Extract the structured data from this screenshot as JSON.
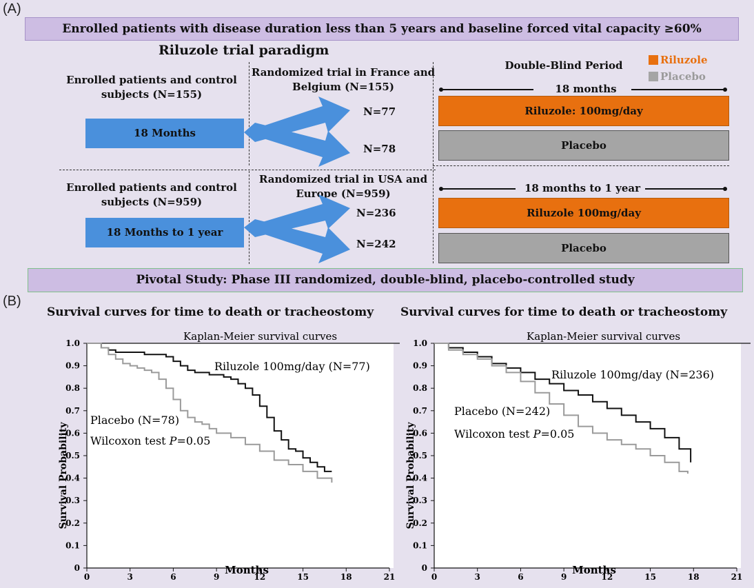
{
  "panel_a": {
    "label": "(A)",
    "top_banner": "Enrolled patients with disease duration less than 5 years and baseline forced vital capacity ≥60%",
    "paradigm_title": "Riluzole trial  paradigm",
    "legend": {
      "riluzole": "Riluzole",
      "placebo": "Placebo",
      "riluzole_color": "#e8700f",
      "placebo_color": "#a5a5a5"
    },
    "double_blind_title": "Double-Blind Period",
    "top": {
      "enrolled": "Enrolled patients and control subjects (N=155)",
      "duration_bar": "18 Months",
      "randomized": "Randomized trial in France and Belgium (N=155)",
      "n_upper": "N=77",
      "n_lower": "N=78",
      "period": "18 months",
      "riluzole_bar": "Riluzole: 100mg/day",
      "placebo_bar": "Placebo"
    },
    "bottom": {
      "enrolled": "Enrolled patients and control subjects (N=959)",
      "duration_bar": "18 Months to 1 year",
      "randomized": "Randomized trial in USA and Europe (N=959)",
      "n_upper": "N=236",
      "n_lower": "N=242",
      "period": "18 months to 1 year",
      "riluzole_bar": "Riluzole 100mg/day",
      "placebo_bar": "Placebo"
    },
    "bottom_banner": "Pivotal Study: Phase III randomized, double-blind, placebo-controlled study",
    "arrow_color": "#4a90dc"
  },
  "panel_b": {
    "label": "(B)",
    "chart_data": [
      {
        "type": "line",
        "title": "Survival curves for time to death or tracheostomy",
        "subtitle": "Kaplan-Meier survival curves",
        "xlabel": "Months",
        "ylabel": "Survival Probability",
        "xlim": [
          0,
          21
        ],
        "ylim": [
          0,
          1.0
        ],
        "xticks": [
          "0",
          "3",
          "6",
          "9",
          "12",
          "15",
          "18",
          "21"
        ],
        "yticks": [
          "0",
          "0.1",
          "0.2",
          "0.3",
          "0.4",
          "0.5",
          "0.6",
          "0.7",
          "0.8",
          "0.9",
          "1.0"
        ],
        "annotation": "Wilcoxon test ",
        "annotation_p": "P",
        "annotation_val": "=0.05",
        "series": [
          {
            "name": "Riluzole 100mg/day (N=77)",
            "color": "#111111",
            "x": [
              0,
              1,
              1.5,
              2,
              3,
              4,
              5,
              5.5,
              6,
              6.5,
              7,
              7.5,
              8,
              8.5,
              9,
              9.5,
              10,
              10.5,
              11,
              11.5,
              12,
              12.5,
              13,
              13.5,
              14,
              14.5,
              15,
              15.5,
              16,
              16.5,
              17
            ],
            "y": [
              1.0,
              0.98,
              0.97,
              0.96,
              0.96,
              0.95,
              0.95,
              0.94,
              0.92,
              0.9,
              0.88,
              0.87,
              0.87,
              0.86,
              0.86,
              0.85,
              0.84,
              0.82,
              0.8,
              0.77,
              0.72,
              0.67,
              0.61,
              0.57,
              0.53,
              0.52,
              0.49,
              0.47,
              0.45,
              0.43,
              0.43
            ]
          },
          {
            "name": "Placebo (N=78)",
            "color": "#9a9a9a",
            "x": [
              0,
              1,
              1.5,
              2,
              2.5,
              3,
              3.5,
              4,
              4.5,
              5,
              5.5,
              6,
              6.5,
              7,
              7.5,
              8,
              8.5,
              9,
              10,
              11,
              12,
              13,
              14,
              15,
              16,
              17
            ],
            "y": [
              1.0,
              0.98,
              0.95,
              0.93,
              0.91,
              0.9,
              0.89,
              0.88,
              0.87,
              0.84,
              0.8,
              0.75,
              0.7,
              0.67,
              0.65,
              0.64,
              0.62,
              0.6,
              0.58,
              0.55,
              0.52,
              0.48,
              0.46,
              0.43,
              0.4,
              0.38
            ]
          }
        ]
      },
      {
        "type": "line",
        "title": "Survival curves for time to death or tracheostomy",
        "subtitle": "Kaplan-Meier survival curves",
        "xlabel": "Months",
        "ylabel": "Survival Probability",
        "xlim": [
          0,
          21
        ],
        "ylim": [
          0,
          1.0
        ],
        "xticks": [
          "0",
          "3",
          "6",
          "9",
          "12",
          "15",
          "18",
          "21"
        ],
        "yticks": [
          "0",
          "0.1",
          "0.2",
          "0.3",
          "0.4",
          "0.5",
          "0.6",
          "0.7",
          "0.8",
          "0.9",
          "1.0"
        ],
        "annotation": "Wilcoxon test ",
        "annotation_p": "P",
        "annotation_val": "=0.05",
        "series": [
          {
            "name": "Riluzole 100mg/day (N=236)",
            "color": "#111111",
            "x": [
              0,
              1,
              2,
              3,
              4,
              5,
              6,
              7,
              8,
              9,
              10,
              11,
              12,
              13,
              14,
              15,
              16,
              17,
              17.8
            ],
            "y": [
              1.0,
              0.98,
              0.96,
              0.94,
              0.91,
              0.89,
              0.87,
              0.84,
              0.82,
              0.79,
              0.77,
              0.74,
              0.71,
              0.68,
              0.65,
              0.62,
              0.58,
              0.53,
              0.47
            ]
          },
          {
            "name": "Placebo (N=242)",
            "color": "#9a9a9a",
            "x": [
              0,
              1,
              2,
              3,
              4,
              5,
              6,
              7,
              8,
              9,
              10,
              11,
              12,
              13,
              14,
              15,
              16,
              17,
              17.6
            ],
            "y": [
              1.0,
              0.97,
              0.95,
              0.93,
              0.9,
              0.87,
              0.83,
              0.78,
              0.73,
              0.68,
              0.63,
              0.6,
              0.57,
              0.55,
              0.53,
              0.5,
              0.47,
              0.43,
              0.42
            ]
          }
        ]
      }
    ]
  }
}
